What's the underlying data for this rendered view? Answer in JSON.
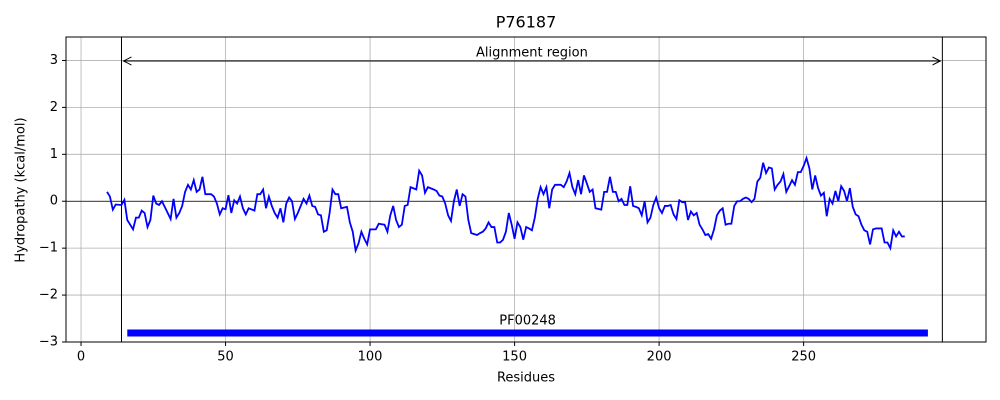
{
  "chart_data": {
    "type": "line",
    "title": "P76187",
    "xlabel": "Residues",
    "ylabel": "Hydropathy (kcal/mol)",
    "x": [
      9,
      10,
      11,
      12,
      14,
      15,
      16,
      18,
      19,
      20,
      21,
      22,
      23,
      24,
      25,
      26,
      27,
      28,
      30,
      31,
      32,
      33,
      34,
      35,
      36,
      37,
      38,
      39,
      40,
      41,
      42,
      43,
      45,
      46,
      47,
      48,
      49,
      50,
      51,
      52,
      53,
      54,
      55,
      56,
      57,
      58,
      60,
      61,
      62,
      63,
      64,
      65,
      66,
      67,
      68,
      69,
      70,
      71,
      72,
      73,
      74,
      75,
      77,
      78,
      79,
      80,
      81,
      82,
      83,
      84,
      85,
      86,
      87,
      88,
      89,
      90,
      92,
      93,
      94,
      95,
      96,
      97,
      98,
      99,
      100,
      102,
      103,
      105,
      106,
      107,
      108,
      109,
      110,
      111,
      112,
      113,
      114,
      116,
      117,
      118,
      119,
      120,
      122,
      123,
      124,
      125,
      126,
      127,
      128,
      129,
      130,
      131,
      132,
      133,
      134,
      135,
      137,
      138,
      139,
      140,
      141,
      142,
      143,
      144,
      145,
      146,
      147,
      148,
      149,
      150,
      151,
      152,
      153,
      154,
      155,
      156,
      157,
      158,
      159,
      160,
      161,
      162,
      163,
      164,
      166,
      167,
      168,
      169,
      170,
      171,
      172,
      173,
      174,
      175,
      176,
      177,
      178,
      180,
      181,
      182,
      183,
      184,
      185,
      186,
      187,
      188,
      189,
      190,
      191,
      192,
      193,
      194,
      195,
      196,
      197,
      198,
      199,
      200,
      201,
      202,
      203,
      204,
      205,
      206,
      207,
      208,
      209,
      210,
      211,
      212,
      213,
      214,
      215,
      216,
      217,
      218,
      219,
      220,
      221,
      222,
      223,
      224,
      225,
      226,
      227,
      228,
      229,
      230,
      231,
      232,
      233,
      234,
      235,
      236,
      237,
      238,
      239,
      240,
      241,
      242,
      243,
      244,
      245,
      246,
      247,
      248,
      249,
      250,
      251,
      252,
      253,
      254,
      255,
      256,
      257,
      258,
      259,
      260,
      261,
      262,
      263,
      264,
      265,
      266,
      267,
      268,
      269,
      270,
      271,
      272,
      273,
      274,
      275,
      276,
      277,
      278,
      279,
      280,
      281,
      282,
      283,
      284,
      285
    ],
    "series": [
      {
        "color": "#0000ff",
        "values": [
          0.2,
          0.1,
          -0.18,
          -0.07,
          -0.08,
          0.03,
          -0.4,
          -0.6,
          -0.35,
          -0.35,
          -0.2,
          -0.25,
          -0.55,
          -0.4,
          0.12,
          -0.05,
          -0.08,
          0.0,
          -0.25,
          -0.38,
          0.05,
          -0.35,
          -0.25,
          -0.1,
          0.2,
          0.35,
          0.25,
          0.45,
          0.2,
          0.25,
          0.52,
          0.15,
          0.15,
          0.1,
          -0.05,
          -0.28,
          -0.15,
          -0.17,
          0.13,
          -0.25,
          0.02,
          -0.05,
          0.1,
          -0.15,
          -0.28,
          -0.15,
          -0.2,
          0.15,
          0.15,
          0.25,
          -0.15,
          0.1,
          -0.1,
          -0.25,
          -0.35,
          -0.15,
          -0.45,
          -0.05,
          0.08,
          0.0,
          -0.38,
          -0.25,
          0.05,
          -0.05,
          0.12,
          -0.1,
          -0.12,
          -0.28,
          -0.3,
          -0.65,
          -0.62,
          -0.25,
          0.25,
          0.15,
          0.15,
          -0.15,
          -0.12,
          -0.45,
          -0.65,
          -1.05,
          -0.9,
          -0.65,
          -0.8,
          -0.92,
          -0.6,
          -0.6,
          -0.48,
          -0.5,
          -0.65,
          -0.3,
          -0.1,
          -0.4,
          -0.55,
          -0.5,
          -0.1,
          -0.08,
          0.3,
          0.25,
          0.65,
          0.55,
          0.18,
          0.3,
          0.25,
          0.22,
          0.12,
          0.1,
          -0.05,
          -0.3,
          -0.42,
          0.0,
          0.25,
          -0.1,
          0.15,
          0.1,
          -0.4,
          -0.68,
          -0.72,
          -0.68,
          -0.65,
          -0.58,
          -0.45,
          -0.55,
          -0.55,
          -0.88,
          -0.88,
          -0.82,
          -0.65,
          -0.25,
          -0.5,
          -0.8,
          -0.45,
          -0.55,
          -0.82,
          -0.55,
          -0.58,
          -0.62,
          -0.35,
          0.05,
          0.3,
          0.15,
          0.3,
          -0.15,
          0.25,
          0.35,
          0.35,
          0.3,
          0.42,
          0.6,
          0.3,
          0.15,
          0.45,
          0.15,
          0.55,
          0.38,
          0.2,
          0.25,
          -0.15,
          -0.18,
          0.2,
          0.2,
          0.52,
          0.2,
          0.2,
          0.0,
          0.05,
          -0.08,
          -0.08,
          0.32,
          -0.1,
          -0.12,
          -0.15,
          -0.3,
          0.0,
          -0.45,
          -0.35,
          -0.08,
          0.08,
          -0.15,
          -0.25,
          -0.1,
          -0.1,
          -0.08,
          -0.28,
          -0.38,
          0.02,
          -0.02,
          -0.02,
          -0.4,
          -0.22,
          -0.3,
          -0.25,
          -0.5,
          -0.6,
          -0.72,
          -0.7,
          -0.8,
          -0.6,
          -0.3,
          -0.2,
          -0.15,
          -0.5,
          -0.48,
          -0.48,
          -0.1,
          0.0,
          0.0,
          0.05,
          0.08,
          0.05,
          -0.02,
          0.05,
          0.42,
          0.5,
          0.82,
          0.6,
          0.72,
          0.7,
          0.25,
          0.35,
          0.42,
          0.58,
          0.2,
          0.32,
          0.45,
          0.35,
          0.62,
          0.62,
          0.75,
          0.92,
          0.7,
          0.25,
          0.55,
          0.28,
          0.12,
          0.18,
          -0.32,
          0.05,
          -0.05,
          0.22,
          0.0,
          0.32,
          0.22,
          0.0,
          0.28,
          -0.12,
          -0.28,
          -0.32,
          -0.5,
          -0.62,
          -0.65,
          -0.92,
          -0.6,
          -0.58,
          -0.58,
          -0.58,
          -0.88,
          -0.88,
          -1.0,
          -0.62,
          -0.75,
          -0.65,
          -0.75,
          -0.75
        ]
      }
    ],
    "xlim": [
      -5.2,
      313.1
    ],
    "ylim": [
      -3,
      3.5
    ],
    "xticks": [
      0,
      50,
      100,
      150,
      200,
      250
    ],
    "yticks": [
      {
        "value": -3,
        "label": "−3"
      },
      {
        "value": -2,
        "label": "−2"
      },
      {
        "value": -1,
        "label": "−1"
      },
      0,
      1,
      2,
      3
    ],
    "grid": true,
    "hline": 0,
    "region": {
      "label": "Alignment region",
      "start": 14,
      "end": 298
    },
    "domain": {
      "label": "PF00248",
      "start": 16,
      "end": 293,
      "color": "#0000ff"
    }
  }
}
